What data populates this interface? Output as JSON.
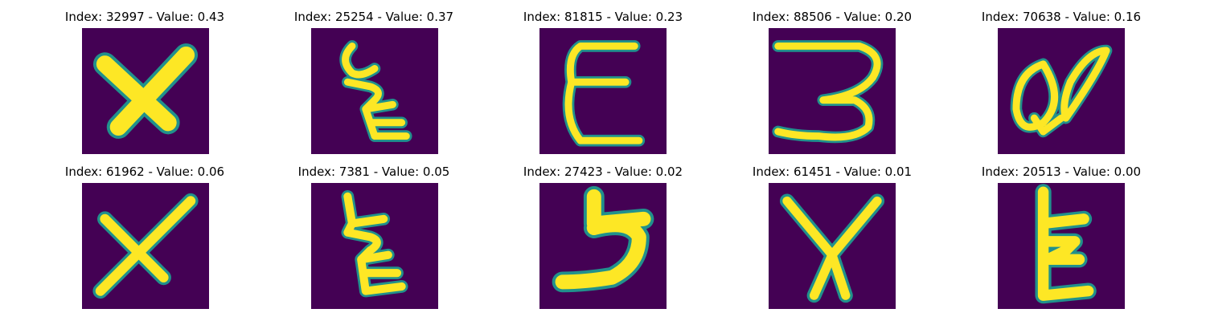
{
  "panels": [
    {
      "index": "32997",
      "value": "0.43",
      "title": "Index: 32997 - Value: 0.43",
      "glyph": "x-thick-icon"
    },
    {
      "index": "25254",
      "value": "0.37",
      "title": "Index: 25254 - Value: 0.37",
      "glyph": "scribble-e-icon"
    },
    {
      "index": "81815",
      "value": "0.23",
      "title": "Index: 81815 - Value: 0.23",
      "glyph": "epsilon-icon"
    },
    {
      "index": "88506",
      "value": "0.20",
      "title": "Index: 88506 - Value: 0.20",
      "glyph": "three-icon"
    },
    {
      "index": "70638",
      "value": "0.16",
      "title": "Index: 70638 - Value: 0.16",
      "glyph": "double-loop-icon"
    },
    {
      "index": "61962",
      "value": "0.06",
      "title": "Index: 61962 - Value: 0.06",
      "glyph": "x-thin-icon"
    },
    {
      "index": "7381",
      "value": "0.05",
      "title": "Index: 7381 - Value: 0.05",
      "glyph": "scribble-e-icon"
    },
    {
      "index": "27423",
      "value": "0.02",
      "title": "Index: 27423 - Value: 0.02",
      "glyph": "five-icon"
    },
    {
      "index": "61451",
      "value": "0.01",
      "title": "Index: 61451 - Value: 0.01",
      "glyph": "x-thin-icon"
    },
    {
      "index": "20513",
      "value": "0.00",
      "title": "Index: 20513 - Value: 0.00",
      "glyph": "e-bar-icon"
    }
  ],
  "colors": {
    "background": "#440154",
    "stroke": "#fde725",
    "edge": "#21918c"
  }
}
